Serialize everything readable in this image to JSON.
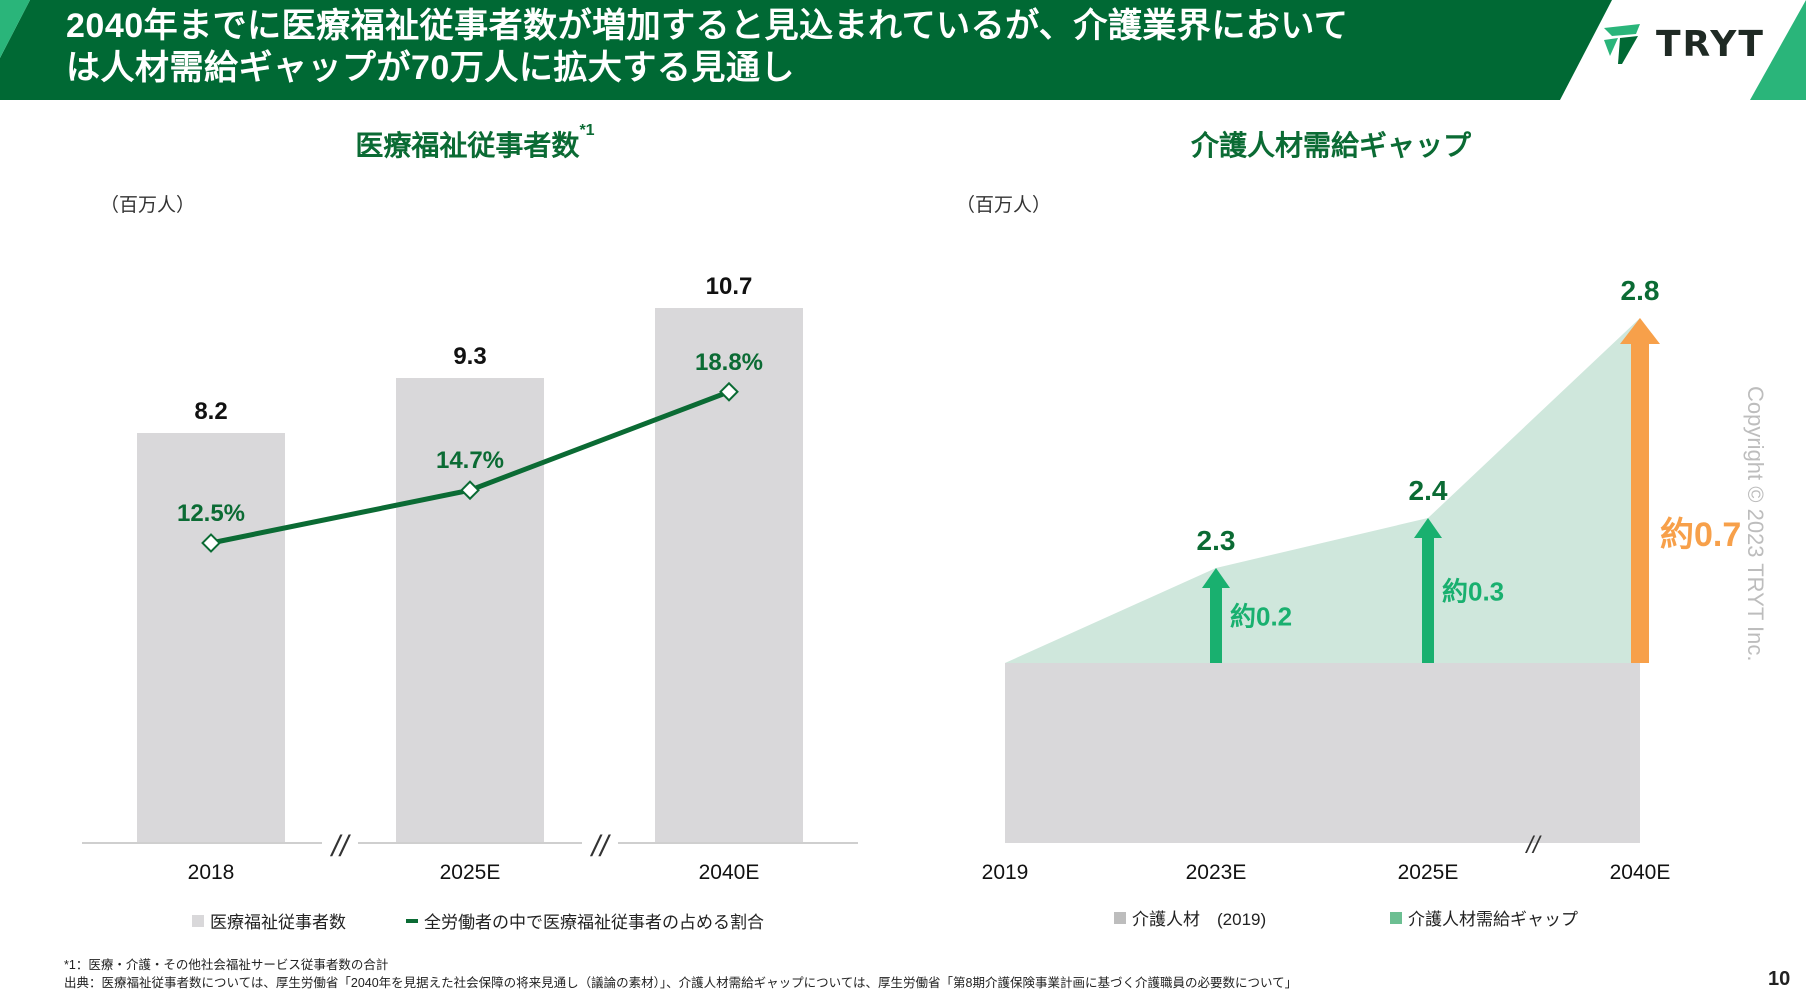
{
  "header": {
    "title_line1": "2040年までに医療福祉従事者数が増加すると見込まれているが、介護業界において",
    "title_line2": "は人材需給ギャップが70万人に拡大する見通し",
    "logo_text": "TRYT"
  },
  "colors": {
    "header_green": "#006934",
    "accent_green": "#2ab57a",
    "bar_gray": "#d9d8da",
    "line_green": "#0b6b34",
    "arrow_green": "#19b06f",
    "arrow_orange": "#f7a04a",
    "area_green": "#cfe7dc"
  },
  "left_chart": {
    "title": "医療福祉従事者数",
    "title_sup": "*1",
    "unit": "（百万人）",
    "legend_bar": "医療福祉従事者数",
    "legend_line": "全労働者の中で医療福祉従事者の占める割合",
    "break_mark": "//"
  },
  "right_chart": {
    "title": "介護人材需給ギャップ",
    "unit": "（百万人）",
    "legend_base": "介護人材　(2019)",
    "legend_gap": "介護人材需給ギャップ",
    "break_mark": "//"
  },
  "chart_data": [
    {
      "type": "bar",
      "title": "医療福祉従事者数*1",
      "ylabel": "（百万人）",
      "categories": [
        "2018",
        "2025E",
        "2040E"
      ],
      "series": [
        {
          "name": "医療福祉従事者数",
          "type": "bar",
          "values": [
            8.2,
            9.3,
            10.7
          ],
          "labels": [
            "8.2",
            "9.3",
            "10.7"
          ]
        },
        {
          "name": "全労働者の中で医療福祉従事者の占める割合",
          "type": "line",
          "values": [
            12.5,
            14.7,
            18.8
          ],
          "labels": [
            "12.5%",
            "14.7%",
            "18.8%"
          ]
        }
      ],
      "ylim": [
        0,
        12
      ],
      "ylim_line": [
        0,
        25
      ],
      "grid": false,
      "legend": "bottom"
    },
    {
      "type": "area",
      "title": "介護人材需給ギャップ",
      "ylabel": "（百万人）",
      "x": [
        "2019",
        "2023E",
        "2025E",
        "2040E"
      ],
      "base_value": 2.11,
      "totals": [
        2.11,
        2.3,
        2.4,
        2.8
      ],
      "total_labels": [
        "",
        "2.3",
        "2.4",
        "2.8"
      ],
      "gaps": [
        0,
        0.2,
        0.3,
        0.7
      ],
      "gap_labels": [
        "",
        "約0.2",
        "約0.3",
        "約0.7"
      ],
      "series": [
        {
          "name": "介護人材　(2019)",
          "values": [
            2.11,
            2.11,
            2.11,
            2.11
          ]
        },
        {
          "name": "介護人材需給ギャップ",
          "values": [
            0,
            0.2,
            0.3,
            0.7
          ]
        }
      ],
      "ylim": [
        1.75,
        2.95
      ],
      "grid": false,
      "legend": "bottom"
    }
  ],
  "footnotes": {
    "note1": "*1：医療・介護・その他社会福祉サービス従事者数の合計",
    "source": "出典：医療福祉従事者数については、厚生労働省「2040年を見据えた社会保障の将来見通し（議論の素材）」、介護人材需給ギャップについては、厚生労働省「第8期介護保険事業計画に基づく介護職員の必要数について」"
  },
  "page_number": "10",
  "copyright": "Copyright © 2023 TRYT Inc."
}
